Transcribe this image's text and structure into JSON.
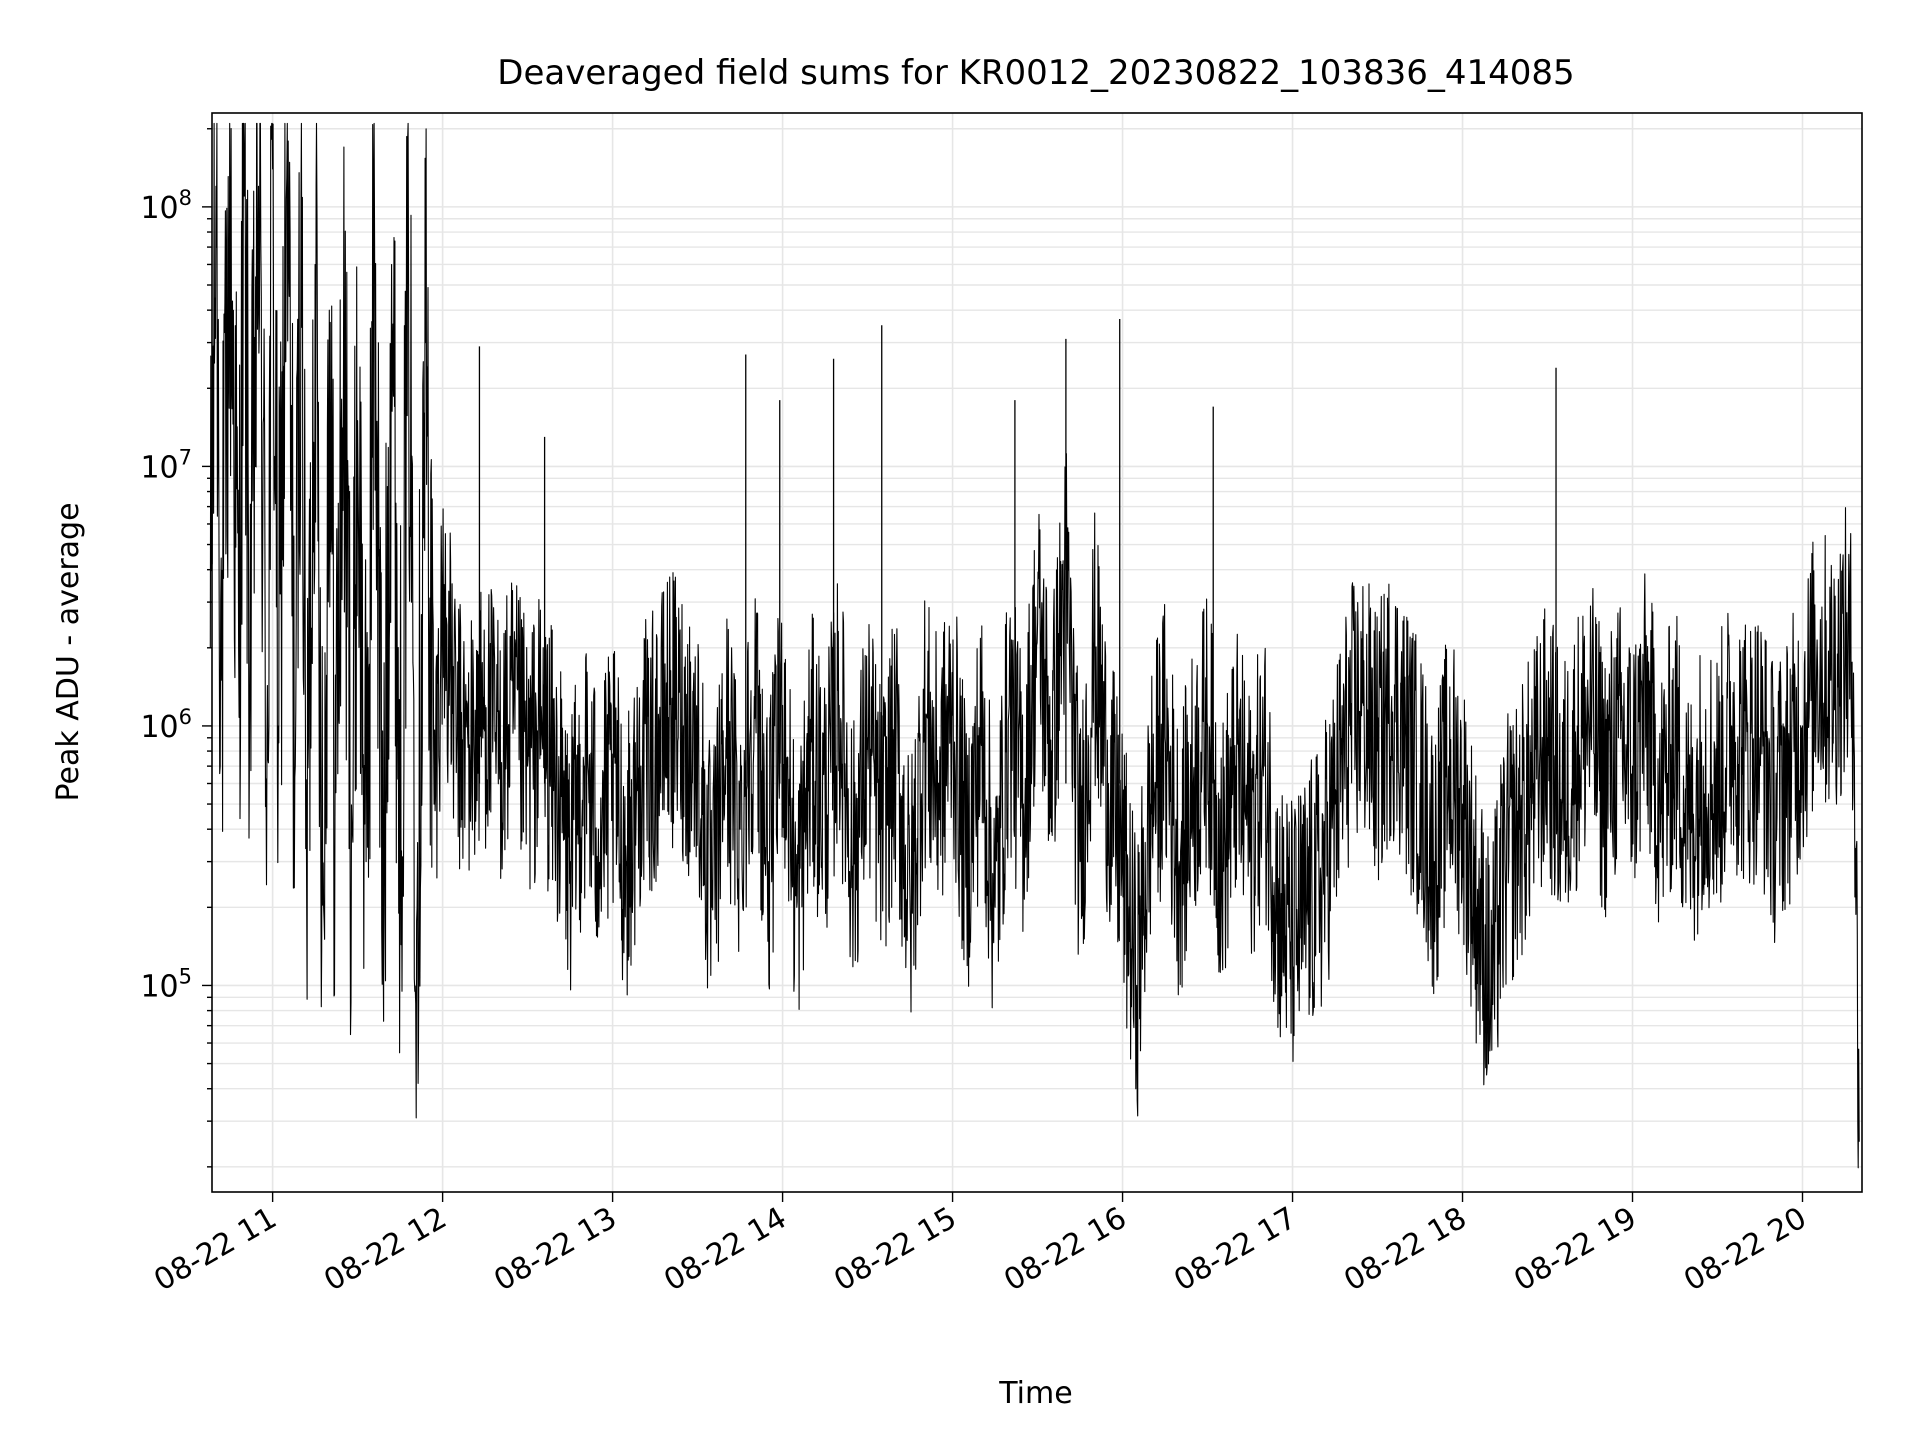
{
  "chart_data": {
    "type": "line",
    "title": "Deaveraged field sums for KR0012_20230822_103836_414085",
    "xlabel": "Time",
    "ylabel": "Peak ADU - average",
    "yscale": "log",
    "xlim": [
      "2023-08-22 10:38:36",
      "2023-08-22 20:21:00"
    ],
    "ylim": [
      16000,
      230000000
    ],
    "x_ticks": [
      "08-22 11",
      "08-22 12",
      "08-22 13",
      "08-22 14",
      "08-22 15",
      "08-22 16",
      "08-22 17",
      "08-22 18",
      "08-22 19",
      "08-22 20"
    ],
    "y_ticks": [
      {
        "base": "10",
        "exp": "5"
      },
      {
        "base": "10",
        "exp": "6"
      },
      {
        "base": "10",
        "exp": "7"
      },
      {
        "base": "10",
        "exp": "8"
      }
    ],
    "grid": true,
    "line_color": "#000000",
    "grid_color": "#e6e6e6",
    "series": [
      {
        "x": [
          "10:38",
          "10:40",
          "10:42",
          "10:45",
          "10:48",
          "10:50",
          "10:52",
          "10:55",
          "10:58",
          "11:00",
          "11:02",
          "11:05",
          "11:08",
          "11:10",
          "11:12",
          "11:15",
          "11:18",
          "11:20",
          "11:22",
          "11:25",
          "11:28",
          "11:30",
          "11:33",
          "11:36",
          "11:39",
          "11:42",
          "11:45",
          "11:48",
          "11:51",
          "11:54",
          "11:57",
          "12:00",
          "12:05",
          "12:10",
          "12:15",
          "12:20",
          "12:25",
          "12:30",
          "12:35",
          "12:40",
          "12:45",
          "12:50",
          "12:55",
          "13:00",
          "13:05",
          "13:10",
          "13:15",
          "13:20",
          "13:25",
          "13:30",
          "13:35",
          "13:40",
          "13:45",
          "13:50",
          "13:55",
          "14:00",
          "14:05",
          "14:10",
          "14:15",
          "14:20",
          "14:25",
          "14:30",
          "14:35",
          "14:40",
          "14:45",
          "14:50",
          "14:55",
          "15:00",
          "15:05",
          "15:10",
          "15:15",
          "15:20",
          "15:25",
          "15:30",
          "15:35",
          "15:40",
          "15:45",
          "15:50",
          "15:55",
          "16:00",
          "16:05",
          "16:10",
          "16:15",
          "16:20",
          "16:25",
          "16:30",
          "16:35",
          "16:40",
          "16:45",
          "16:50",
          "16:55",
          "17:00",
          "17:05",
          "17:10",
          "17:15",
          "17:20",
          "17:25",
          "17:30",
          "17:35",
          "17:40",
          "17:45",
          "17:50",
          "17:55",
          "18:00",
          "18:05",
          "18:10",
          "18:15",
          "18:20",
          "18:25",
          "18:30",
          "18:35",
          "18:40",
          "18:45",
          "18:50",
          "18:55",
          "19:00",
          "19:05",
          "19:10",
          "19:15",
          "19:20",
          "19:25",
          "19:30",
          "19:35",
          "19:40",
          "19:45",
          "19:50",
          "19:55",
          "20:00",
          "20:05",
          "20:10",
          "20:15",
          "20:18",
          "20:20"
        ],
        "values": [
          2000000,
          120000000,
          1500000,
          90000000,
          2000000,
          110000000,
          1800000,
          120000000,
          900000,
          140000000,
          1000000,
          130000000,
          700000,
          110000000,
          250000,
          60000000,
          200000,
          40000000,
          500000,
          25000000,
          400000,
          15000000,
          300000,
          70000000,
          150000,
          60000000,
          400000,
          45000000,
          200000,
          30000000,
          500000,
          3000000,
          900000,
          800000,
          1200000,
          800000,
          1100000,
          700000,
          1000000,
          600000,
          300000,
          700000,
          400000,
          600000,
          300000,
          700000,
          800000,
          1200000,
          1000000,
          800000,
          200000,
          900000,
          400000,
          1300000,
          300000,
          1200000,
          200000,
          800000,
          500000,
          1200000,
          300000,
          900000,
          400000,
          800000,
          200000,
          1000000,
          600000,
          1100000,
          300000,
          900000,
          200000,
          1200000,
          500000,
          2500000,
          800000,
          4000000,
          300000,
          2000000,
          600000,
          300000,
          100000,
          500000,
          900000,
          300000,
          600000,
          1000000,
          300000,
          700000,
          400000,
          700000,
          200000,
          150000,
          200000,
          250000,
          500000,
          1000000,
          1200000,
          800000,
          1300000,
          900000,
          600000,
          300000,
          700000,
          500000,
          200000,
          100000,
          300000,
          400000,
          600000,
          900000,
          500000,
          800000,
          1100000,
          600000,
          900000,
          700000,
          1200000,
          500000,
          900000,
          400000,
          700000,
          600000,
          1000000,
          800000,
          900000,
          500000,
          700000,
          1000000,
          1800000,
          1500000,
          2000000,
          1600000,
          25000
        ],
        "spikes": [
          {
            "x": "12:13",
            "value": 29000000
          },
          {
            "x": "12:36",
            "value": 13000000
          },
          {
            "x": "13:47",
            "value": 27000000
          },
          {
            "x": "13:59",
            "value": 18000000
          },
          {
            "x": "14:18",
            "value": 26000000
          },
          {
            "x": "14:35",
            "value": 35000000
          },
          {
            "x": "15:22",
            "value": 18000000
          },
          {
            "x": "15:40",
            "value": 31000000
          },
          {
            "x": "15:59",
            "value": 37000000
          },
          {
            "x": "16:32",
            "value": 17000000
          },
          {
            "x": "18:33",
            "value": 24000000
          }
        ]
      }
    ]
  }
}
